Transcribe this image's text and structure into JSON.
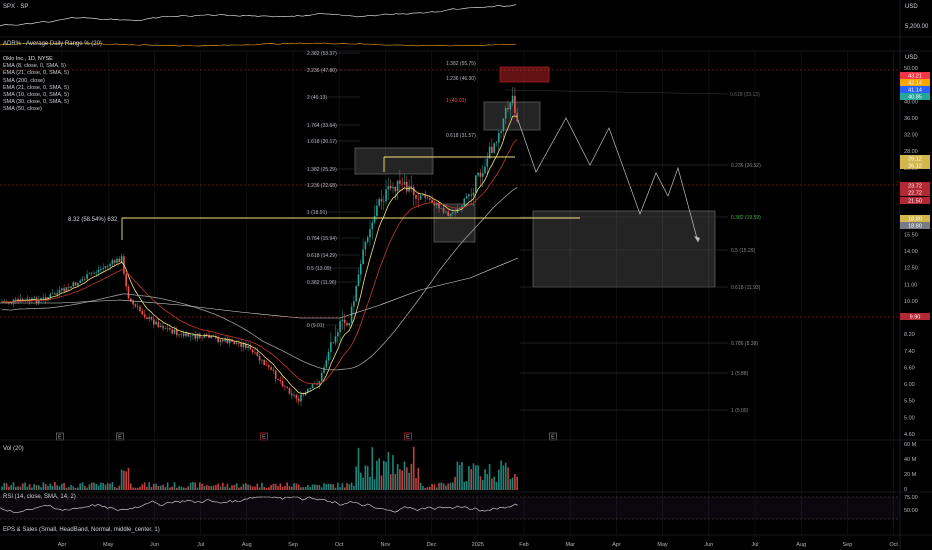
{
  "panes": {
    "spx_label": "SPX · SP",
    "spx_currency": "USD",
    "spx_tick": "5,200.00",
    "adr_label": "ADR% - Average Daily Range % (20)",
    "eps_label": "EPS & Sales (Small, HeadBand, Normal, middle_center, 1)",
    "vol_label": "Vol (20)",
    "rsi_label": "RSI (14, close, SMA, 14, 2)",
    "main_currency": "USD"
  },
  "indicators": [
    "Oklo Inc., 1D, NYSE",
    "EMA (8, close, 0, SMA, 5)",
    "EMA (21, close, 0, SMA, 5)",
    "SMA (200, close)",
    "EMA (21, close, 0, SMA, 5)",
    "SMA (10, close, 0, SMA, 5)",
    "SMA (30, close, 0, SMA, 5)",
    "SMA (50, close)"
  ],
  "price_axis": [
    "50.00",
    "45.00",
    "40.00",
    "36.00",
    "32.00",
    "28.00",
    "25.00",
    "22.00",
    "20.00",
    "17.00",
    "15.50",
    "14.00",
    "12.50",
    "11.00",
    "10.00",
    "9.00",
    "8.20",
    "7.40",
    "6.60",
    "6.00",
    "5.50",
    "5.00",
    "4.60"
  ],
  "vol_axis": [
    "60 M",
    "40 M",
    "20 M",
    "0"
  ],
  "rsi_axis": [
    "75.00",
    "50.00"
  ],
  "time_axis": [
    "Apr",
    "May",
    "Jun",
    "Jul",
    "Aug",
    "Sep",
    "Oct",
    "Nov",
    "Dec",
    "2025",
    "Feb",
    "Mar",
    "Apr",
    "May",
    "Jun",
    "Jul",
    "Aug",
    "Sep",
    "Oct"
  ],
  "price_badges": [
    {
      "label": "43.21",
      "color": "#f23645"
    },
    {
      "label": "42.14",
      "color": "#f7a600"
    },
    {
      "label": "41.14",
      "color": "#2962ff"
    },
    {
      "label": "40.85",
      "color": "#26a69a"
    },
    {
      "label": "28.12",
      "color": "#d4b74c"
    },
    {
      "label": "26.12",
      "color": "#d4b74c"
    },
    {
      "label": "23.72",
      "color": "#b22833"
    },
    {
      "label": "22.72",
      "color": "#b22833"
    },
    {
      "label": "21.50",
      "color": "#b22833"
    },
    {
      "label": "18.80",
      "color": "#d4b74c"
    },
    {
      "label": "18.80",
      "color": "#787b86"
    },
    {
      "label": "9.90",
      "color": "#b22833"
    }
  ],
  "fib_left": [
    "2.382 (53.37)",
    "2.236 (47.80)",
    "2 (40.13)",
    "1.764 (33.64)",
    "1.618 (30.17)",
    "1.382 (25.29)",
    "1.236 (22.68)",
    "1 (18.91)",
    "0.764 (15.94)",
    "0.618 (14.29)",
    "0.5 (13.09)",
    "0.382 (11.96)",
    "0 (9.01)"
  ],
  "fib_mid": [
    "1.382 (55.75)",
    "1.236 (46.30)",
    "1 (40.03)",
    "0.618 (31.57)"
  ],
  "fib_right": [
    "0.236 (26.52)",
    "0.382 (19.59)",
    "0.5 (15.29)",
    "0.618 (11.93)",
    "0.786 (8.38)",
    "1 (5.88)",
    "1 (5.00)"
  ],
  "annotation": "8.32 (58.54%) 632",
  "earnings_markers": [
    "E",
    "E",
    "E",
    "E",
    "E"
  ],
  "colors": {
    "up": "#26a69a",
    "down": "#ef5350",
    "ema8": "#f7e27a",
    "ema21": "#c0392b",
    "sma200": "#9e9e9e",
    "fib_green": "#4caf50"
  }
}
